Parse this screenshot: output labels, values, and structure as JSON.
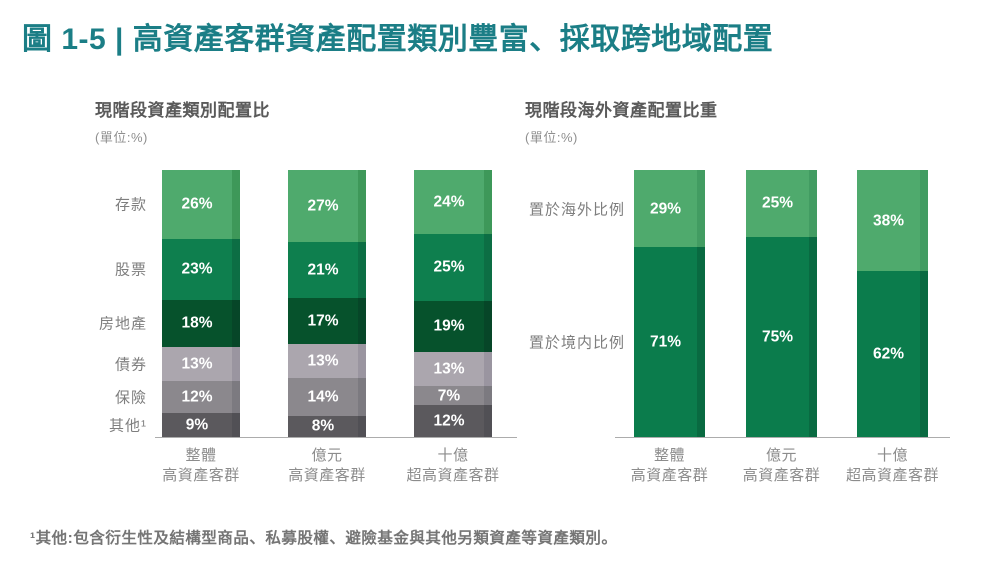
{
  "page": {
    "title": "圖 1-5 | 高資產客群資產配置類別豐富、採取跨地域配置",
    "footnote": "¹其他:包含衍生性及結構型商品、私募股權、避險基金與其他另類資產等資產類別。"
  },
  "colors": {
    "title_teal": "#1B7E86",
    "axis_gray": "#ACACAC",
    "heading_gray": "#5A5A5A",
    "label_gray": "#8C8C8C",
    "value_text": "#FFFFFF"
  },
  "chart_data": [
    {
      "type": "bar",
      "variant": "stacked-100-percent-column",
      "title": "現階段資產類別配置比",
      "subtitle": "(單位:%)",
      "value_suffix": "%",
      "legend_position": "left-of-first-bar",
      "grid": false,
      "categories": [
        "整體\n高資產客群",
        "億元\n高資產客群",
        "十億\n超高資產客群"
      ],
      "series": [
        {
          "name": "存款",
          "color": "#4FAA6D",
          "shade": "#3E9859",
          "values": [
            26,
            27,
            24
          ]
        },
        {
          "name": "股票",
          "color": "#0E7F4E",
          "shade": "#0C6E44",
          "values": [
            23,
            21,
            25
          ]
        },
        {
          "name": "房地產",
          "color": "#06522C",
          "shade": "#064628",
          "values": [
            18,
            17,
            19
          ]
        },
        {
          "name": "債券",
          "color": "#ABA6AE",
          "shade": "#9A95A0",
          "values": [
            13,
            13,
            13
          ]
        },
        {
          "name": "保險",
          "color": "#8B888D",
          "shade": "#7C7A80",
          "values": [
            12,
            14,
            7
          ]
        },
        {
          "name": "其他¹",
          "color": "#5B595D",
          "shade": "#515055",
          "values": [
            9,
            8,
            12
          ]
        }
      ]
    },
    {
      "type": "bar",
      "variant": "stacked-100-percent-column",
      "title": "現階段海外資產配置比重",
      "subtitle": "(單位:%)",
      "value_suffix": "%",
      "legend_position": "left-of-first-bar",
      "grid": false,
      "categories": [
        "整體\n高資產客群",
        "億元\n高資產客群",
        "十億\n超高資產客群"
      ],
      "series": [
        {
          "name": "置於海外比例",
          "color": "#4FAA6D",
          "shade": "#429C62",
          "values": [
            29,
            25,
            38
          ]
        },
        {
          "name": "置於境内比例",
          "color": "#0B7C4C",
          "shade": "#096A41",
          "values": [
            71,
            75,
            62
          ]
        }
      ]
    }
  ]
}
